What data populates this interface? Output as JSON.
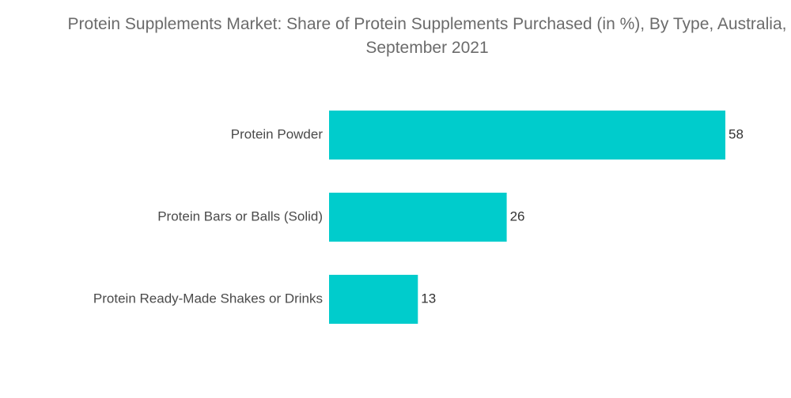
{
  "chart_data": {
    "type": "bar",
    "orientation": "horizontal",
    "title": "Protein Supplements Market: Share of Protein Supplements Purchased (in %), By Type, Australia, September 2021",
    "categories": [
      "Protein Powder",
      "Protein Bars or Balls (Solid)",
      "Protein Ready-Made Shakes or Drinks"
    ],
    "values": [
      58,
      26,
      13
    ],
    "xlabel": "",
    "ylabel": "",
    "xlim": [
      0,
      58
    ],
    "grid": false,
    "legend": "none",
    "bar_color": "#00cccc"
  }
}
